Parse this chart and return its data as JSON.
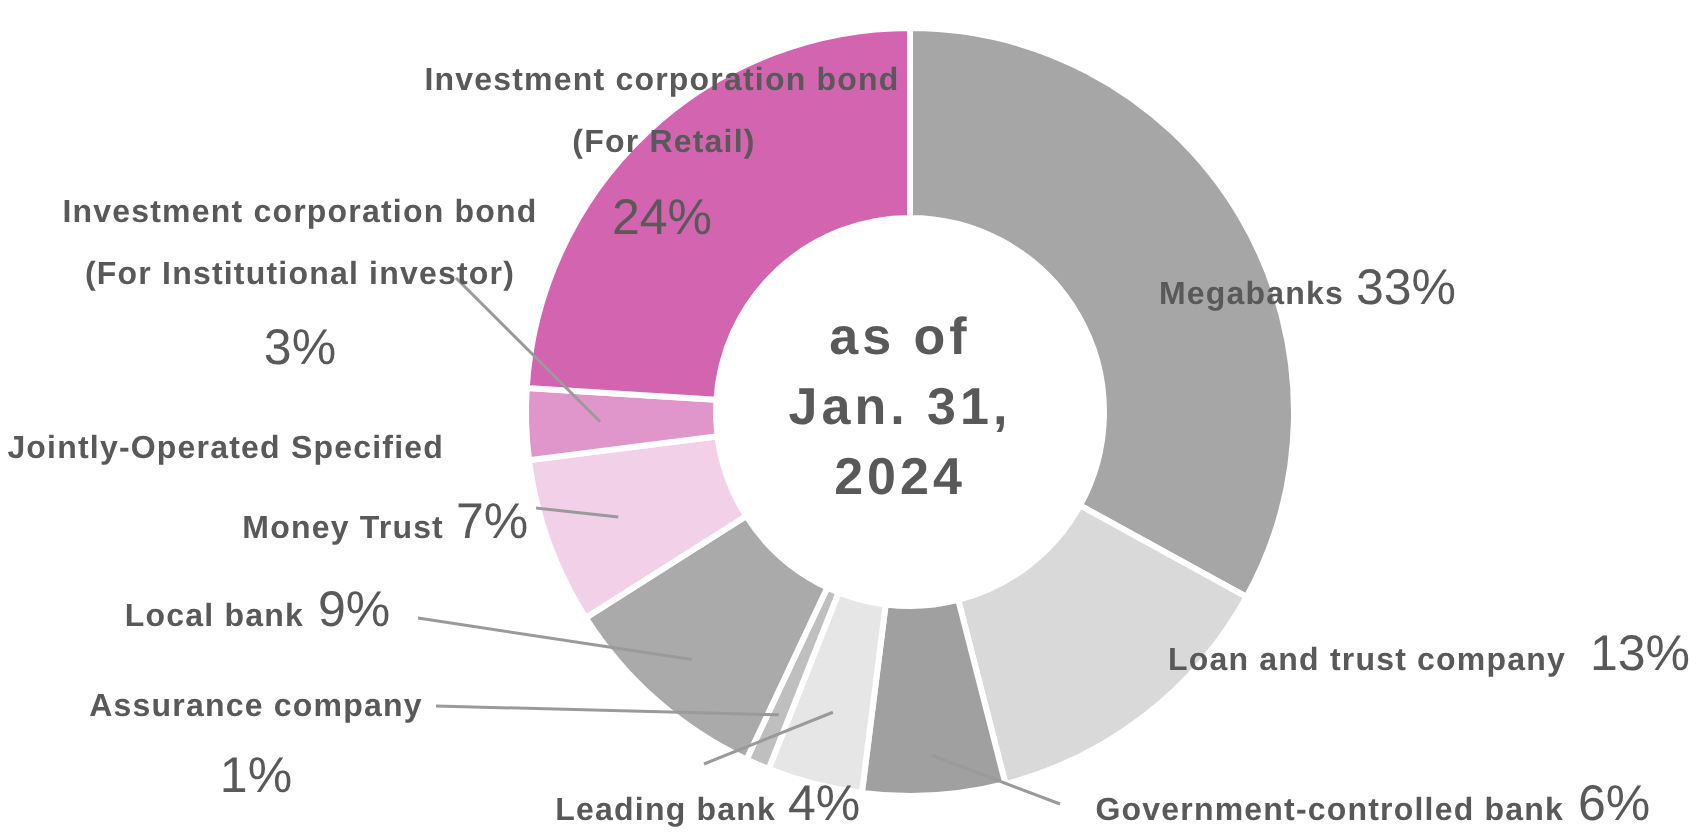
{
  "chart_data": {
    "type": "donut",
    "title": "as of\nJan. 31,\n2024",
    "categories": [
      "Megabanks",
      "Loan and trust company",
      "Government-controlled bank",
      "Leading bank",
      "Assurance company",
      "Local bank",
      "Jointly-Operated Specified\nMoney Trust",
      "Investment corporation bond\n(For Institutional investor)",
      "Investment corporation bond\n(For Retail)"
    ],
    "values": [
      33,
      13,
      6,
      4,
      1,
      9,
      7,
      3,
      24
    ],
    "colors": [
      "#a6a6a6",
      "#d9d9d9",
      "#a0a0a0",
      "#e6e6e6",
      "#bfbfbf",
      "#aaaaaa",
      "#f2d0e8",
      "#e096cb",
      "#d264b0"
    ],
    "value_labels": [
      "33%",
      "13%",
      "6%",
      "4%",
      "1%",
      "9%",
      "7%",
      "3%",
      "24%"
    ]
  }
}
